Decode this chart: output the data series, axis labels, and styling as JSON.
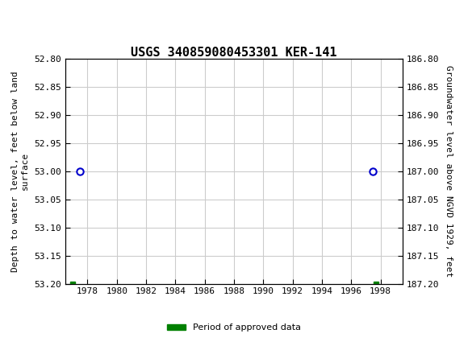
{
  "title": "USGS 340859080453301 KER-141",
  "left_ylabel": "Depth to water level, feet below land\nsurface",
  "right_ylabel": "Groundwater level above NGVD 1929, feet",
  "ylim_left": [
    52.8,
    53.2
  ],
  "ylim_right": [
    186.8,
    187.2
  ],
  "xticks": [
    1978,
    1980,
    1982,
    1984,
    1986,
    1988,
    1990,
    1992,
    1994,
    1996,
    1998
  ],
  "yticks_left": [
    52.8,
    52.85,
    52.9,
    52.95,
    53.0,
    53.05,
    53.1,
    53.15,
    53.2
  ],
  "yticks_right": [
    187.2,
    187.15,
    187.1,
    187.05,
    187.0,
    186.95,
    186.9,
    186.85,
    186.8
  ],
  "circle_points_x": [
    1977.5,
    1997.5
  ],
  "circle_points_y": [
    53.0,
    53.0
  ],
  "square_points_x": [
    1977.0,
    1997.7
  ],
  "square_points_y": [
    53.2,
    53.2
  ],
  "header_color": "#006B3C",
  "circle_color": "#0000CC",
  "square_color": "#008000",
  "bg_color": "#FFFFFF",
  "grid_color": "#CCCCCC",
  "font_family": "monospace",
  "legend_label": "Period of approved data",
  "xlim": [
    1976.5,
    1999.5
  ]
}
